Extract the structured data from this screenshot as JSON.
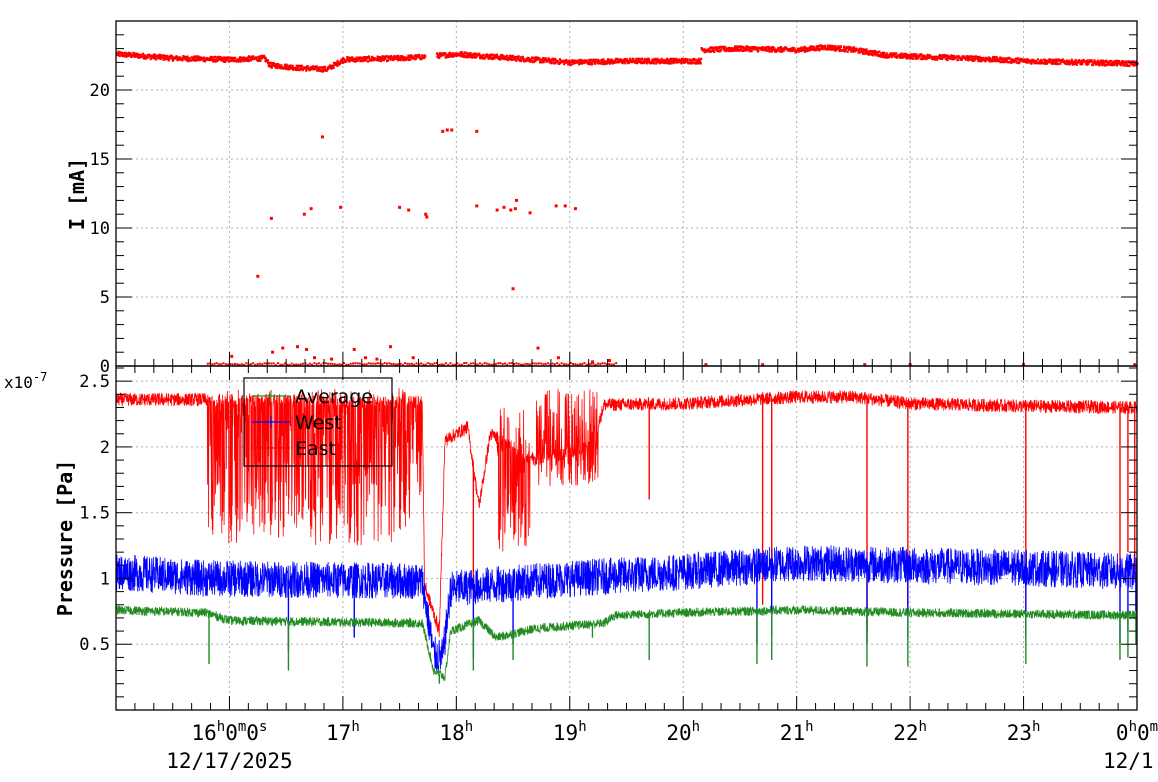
{
  "chart_data": [
    {
      "type": "scatter",
      "panel": "top",
      "ylabel": "I [mA]",
      "ylim": [
        0,
        25
      ],
      "yticks": [
        0,
        5,
        10,
        15,
        20
      ],
      "ytick_labels": [
        "0",
        "5",
        "10",
        "15",
        "20"
      ],
      "x_range_hours": [
        15.0,
        24.0
      ],
      "grid": true,
      "series": [
        {
          "color": "#ff0000",
          "baseline": [
            [
              15.0,
              22.6
            ],
            [
              15.5,
              22.3
            ],
            [
              16.0,
              22.2
            ],
            [
              16.3,
              22.3
            ],
            [
              16.35,
              21.8
            ],
            [
              16.6,
              21.6
            ],
            [
              16.85,
              21.5
            ],
            [
              17.0,
              22.2
            ],
            [
              17.5,
              22.3
            ],
            [
              17.7,
              22.4
            ],
            [
              17.85,
              22.5
            ],
            [
              18.0,
              22.6
            ],
            [
              18.5,
              22.3
            ],
            [
              19.0,
              22.0
            ],
            [
              19.5,
              22.1
            ],
            [
              20.0,
              22.1
            ],
            [
              20.15,
              22.1
            ],
            [
              20.15,
              22.9
            ],
            [
              20.5,
              23.0
            ],
            [
              21.0,
              22.9
            ],
            [
              21.25,
              23.1
            ],
            [
              21.5,
              22.9
            ],
            [
              21.8,
              22.5
            ],
            [
              22.5,
              22.3
            ],
            [
              23.0,
              22.1
            ],
            [
              23.5,
              22.0
            ],
            [
              24.0,
              21.9
            ]
          ],
          "gaps": [
            [
              17.72,
              17.82
            ]
          ],
          "outliers": [
            [
              16.25,
              6.5
            ],
            [
              16.37,
              10.7
            ],
            [
              16.66,
              11.0
            ],
            [
              16.72,
              11.4
            ],
            [
              16.82,
              16.6
            ],
            [
              16.98,
              11.5
            ],
            [
              17.5,
              11.5
            ],
            [
              17.58,
              11.3
            ],
            [
              17.73,
              11.0
            ],
            [
              17.74,
              10.8
            ],
            [
              17.88,
              17.0
            ],
            [
              17.92,
              17.1
            ],
            [
              17.96,
              17.1
            ],
            [
              18.18,
              17.0
            ],
            [
              18.18,
              11.6
            ],
            [
              18.36,
              11.3
            ],
            [
              18.42,
              11.5
            ],
            [
              18.48,
              11.3
            ],
            [
              18.53,
              12.0
            ],
            [
              18.52,
              11.4
            ],
            [
              18.65,
              11.1
            ],
            [
              18.5,
              5.6
            ],
            [
              18.88,
              11.6
            ],
            [
              18.96,
              11.6
            ],
            [
              19.05,
              11.4
            ],
            [
              16.02,
              0.7
            ],
            [
              16.38,
              1.0
            ],
            [
              16.47,
              1.3
            ],
            [
              16.6,
              1.4
            ],
            [
              16.68,
              1.2
            ],
            [
              16.75,
              0.6
            ],
            [
              16.9,
              0.5
            ],
            [
              17.1,
              1.2
            ],
            [
              17.2,
              0.6
            ],
            [
              17.3,
              0.5
            ],
            [
              17.42,
              1.4
            ],
            [
              17.62,
              0.6
            ],
            [
              18.72,
              1.3
            ],
            [
              18.9,
              0.6
            ],
            [
              19.2,
              0.3
            ],
            [
              19.35,
              0.4
            ],
            [
              20.2,
              0.1
            ],
            [
              20.7,
              0.1
            ],
            [
              21.6,
              0.1
            ],
            [
              22.0,
              0.1
            ],
            [
              23.0,
              0.1
            ],
            [
              23.98,
              0.1
            ]
          ],
          "zero_band": [
            15.8,
            19.4
          ]
        }
      ]
    },
    {
      "type": "line",
      "panel": "bottom",
      "ylabel": "Pressure [Pa]",
      "exponent": "x10",
      "exponent_power": "-7",
      "ylim": [
        0.0,
        2.6
      ],
      "yticks": [
        0.5,
        1.0,
        1.5,
        2.0,
        2.5
      ],
      "ytick_labels": [
        "0.5",
        "1",
        "1.5",
        "2",
        "2.5"
      ],
      "x_range_hours": [
        15.0,
        24.0
      ],
      "grid": true,
      "legend_position": "top-left",
      "xticks": [
        {
          "hour": 16,
          "label": "16",
          "suffix": "0",
          "suffix2": "0",
          "sub": "12/17/2025"
        },
        {
          "hour": 17,
          "label": "17"
        },
        {
          "hour": 18,
          "label": "18"
        },
        {
          "hour": 19,
          "label": "19"
        },
        {
          "hour": 20,
          "label": "20"
        },
        {
          "hour": 21,
          "label": "21"
        },
        {
          "hour": 22,
          "label": "22"
        },
        {
          "hour": 23,
          "label": "23"
        },
        {
          "hour": 24,
          "label": "0",
          "suffix": "0",
          "sub": "12/1"
        }
      ],
      "series": [
        {
          "name": "East",
          "color": "#ff0000",
          "base": [
            [
              15.0,
              2.36
            ],
            [
              15.8,
              2.36
            ],
            [
              17.7,
              2.34
            ],
            [
              17.72,
              0.95
            ],
            [
              17.85,
              0.6
            ],
            [
              17.9,
              2.05
            ],
            [
              18.1,
              2.15
            ],
            [
              18.2,
              1.55
            ],
            [
              18.3,
              2.1
            ],
            [
              18.7,
              1.9
            ],
            [
              19.2,
              2.0
            ],
            [
              19.3,
              2.32
            ],
            [
              20.0,
              2.33
            ],
            [
              21.0,
              2.38
            ],
            [
              21.5,
              2.38
            ],
            [
              22.0,
              2.33
            ],
            [
              23.0,
              2.31
            ],
            [
              24.0,
              2.3
            ]
          ],
          "noise_zones": [
            [
              15.8,
              17.7,
              1.25,
              2.45
            ],
            [
              18.35,
              18.65,
              1.2,
              2.3
            ],
            [
              18.7,
              19.25,
              1.7,
              2.45
            ]
          ],
          "spikes": [
            [
              17.72,
              0.95
            ],
            [
              18.15,
              0.9
            ],
            [
              18.5,
              1.5
            ],
            [
              19.7,
              1.6
            ],
            [
              20.7,
              0.8
            ],
            [
              20.78,
              1.1
            ],
            [
              21.62,
              0.6
            ],
            [
              21.98,
              0.8
            ],
            [
              23.02,
              0.6
            ],
            [
              23.85,
              0.9
            ],
            [
              23.92,
              1.2
            ],
            [
              23.98,
              1.0
            ]
          ],
          "noise_amp": 0.05
        },
        {
          "name": "West",
          "color": "#0000ff",
          "base": [
            [
              15.0,
              1.05
            ],
            [
              15.8,
              1.0
            ],
            [
              17.7,
              0.98
            ],
            [
              17.8,
              0.42
            ],
            [
              17.88,
              0.4
            ],
            [
              17.95,
              0.92
            ],
            [
              18.3,
              0.95
            ],
            [
              19.0,
              1.0
            ],
            [
              20.0,
              1.05
            ],
            [
              21.0,
              1.12
            ],
            [
              22.0,
              1.1
            ],
            [
              23.0,
              1.08
            ],
            [
              24.0,
              1.05
            ]
          ],
          "noise_zones": [
            [
              15.0,
              24.0,
              0.0,
              0.0
            ]
          ],
          "spikes": [
            [
              16.52,
              0.45
            ],
            [
              17.1,
              0.55
            ],
            [
              18.15,
              0.4
            ],
            [
              18.5,
              0.5
            ],
            [
              20.65,
              0.5
            ],
            [
              20.78,
              0.55
            ],
            [
              21.62,
              0.5
            ],
            [
              21.98,
              0.55
            ],
            [
              23.02,
              0.55
            ],
            [
              23.85,
              0.5
            ],
            [
              23.92,
              0.6
            ],
            [
              23.99,
              0.75
            ]
          ],
          "noise_amp": 0.14
        },
        {
          "name": "Average",
          "color": "#228b22",
          "base": [
            [
              15.0,
              0.76
            ],
            [
              15.8,
              0.74
            ],
            [
              16.0,
              0.68
            ],
            [
              17.7,
              0.66
            ],
            [
              17.8,
              0.3
            ],
            [
              17.9,
              0.25
            ],
            [
              17.95,
              0.6
            ],
            [
              18.2,
              0.68
            ],
            [
              18.35,
              0.55
            ],
            [
              18.7,
              0.62
            ],
            [
              19.3,
              0.66
            ],
            [
              19.4,
              0.72
            ],
            [
              20.0,
              0.74
            ],
            [
              21.0,
              0.76
            ],
            [
              22.0,
              0.74
            ],
            [
              23.0,
              0.73
            ],
            [
              24.0,
              0.72
            ]
          ],
          "noise_zones": [
            [
              15.0,
              24.0,
              0.0,
              0.0
            ]
          ],
          "spikes": [
            [
              15.82,
              0.35
            ],
            [
              16.52,
              0.3
            ],
            [
              17.85,
              0.2
            ],
            [
              18.15,
              0.3
            ],
            [
              18.5,
              0.38
            ],
            [
              19.2,
              0.55
            ],
            [
              19.7,
              0.38
            ],
            [
              20.65,
              0.35
            ],
            [
              20.78,
              0.38
            ],
            [
              21.62,
              0.33
            ],
            [
              21.98,
              0.33
            ],
            [
              23.02,
              0.35
            ],
            [
              23.85,
              0.38
            ],
            [
              23.92,
              0.4
            ],
            [
              23.99,
              0.5
            ]
          ],
          "noise_amp": 0.035
        }
      ]
    }
  ]
}
